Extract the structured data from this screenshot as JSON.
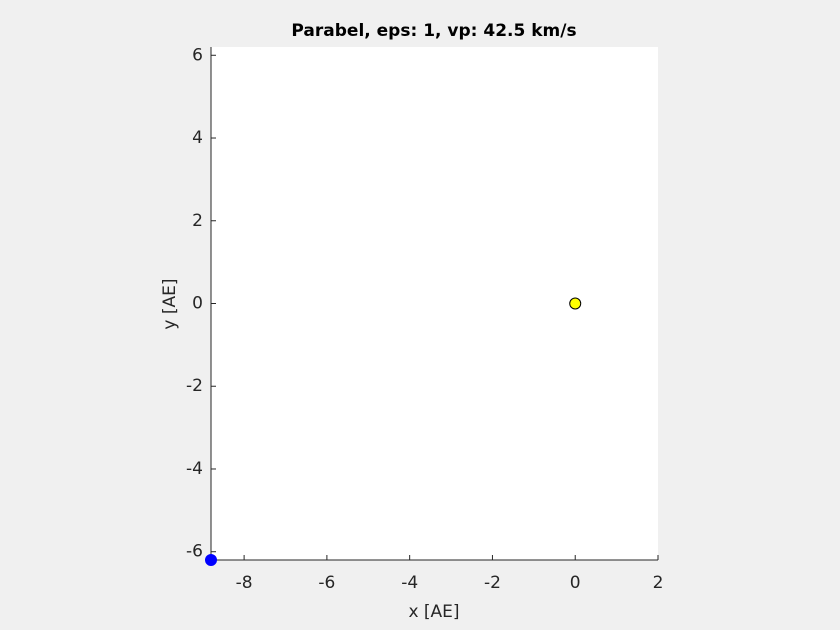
{
  "chart_data": {
    "type": "scatter",
    "title": "Parabel, eps: 1, vp: 42.5 km/s",
    "xlabel": "x [AE]",
    "ylabel": "y [AE]",
    "xlim": [
      -8.8,
      2
    ],
    "ylim": [
      -6.2,
      6.2
    ],
    "xticks": [
      -8,
      -6,
      -4,
      -2,
      0,
      2
    ],
    "yticks": [
      -6,
      -4,
      -2,
      0,
      2,
      4,
      6
    ],
    "grid": false,
    "series": [
      {
        "color": "#0000ff",
        "edgecolor": "#0000ff",
        "x": [
          -8.8
        ],
        "values": [
          -6.2
        ]
      },
      {
        "color": "#ffff00",
        "edgecolor": "#000000",
        "x": [
          0
        ],
        "values": [
          0
        ]
      }
    ]
  }
}
